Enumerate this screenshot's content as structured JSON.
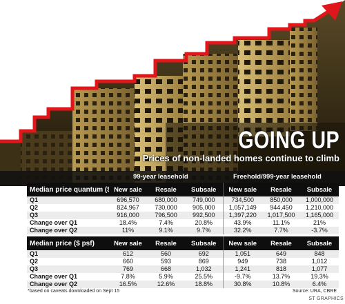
{
  "headline": "GOING UP",
  "subheadline": "Prices of non-landed homes continue to climb",
  "groups": {
    "leasehold": "99-year leasehold",
    "freehold": "Freehold/999-year leasehold"
  },
  "columns": [
    "New sale",
    "Resale",
    "Subsale",
    "New sale",
    "Resale",
    "Subsale"
  ],
  "quantum": {
    "title": "Median price quantum ($)",
    "rows": [
      {
        "label": "Q1",
        "cells": [
          "696,570",
          "680,000",
          "749,000",
          "734,500",
          "850,000",
          "1,000,000"
        ]
      },
      {
        "label": "Q2",
        "cells": [
          "824,967",
          "730,000",
          "905,000",
          "1,057,149",
          "944,450",
          "1,210,000"
        ]
      },
      {
        "label": "Q3",
        "cells": [
          "916,000",
          "796,500",
          "992,500",
          "1,397,220",
          "1,017,500",
          "1,165,000"
        ]
      },
      {
        "label": "Change over Q1",
        "cells": [
          "18.4%",
          "7.4%",
          "20.8%",
          "43.9%",
          "11.1%",
          "21%"
        ]
      },
      {
        "label": "Change over Q2",
        "cells": [
          "11%",
          "9.1%",
          "9.7%",
          "32.2%",
          "7.7%",
          "-3.7%"
        ]
      }
    ]
  },
  "psf": {
    "title": "Median price ($ psf)",
    "rows": [
      {
        "label": "Q1",
        "cells": [
          "612",
          "560",
          "692",
          "1,051",
          "649",
          "848"
        ]
      },
      {
        "label": "Q2",
        "cells": [
          "660",
          "593",
          "869",
          "949",
          "738",
          "1,012"
        ]
      },
      {
        "label": "Q3",
        "cells": [
          "769",
          "668",
          "1,032",
          "1,241",
          "818",
          "1,077"
        ]
      },
      {
        "label": "Change over Q1",
        "cells": [
          "7.8%",
          "5.9%",
          "25.5%",
          "-9.7%",
          "13.7%",
          "19.3%"
        ]
      },
      {
        "label": "Change over Q2",
        "cells": [
          "16.5%",
          "12.6%",
          "18.8%",
          "30.8%",
          "10.8%",
          "6.4%"
        ]
      }
    ]
  },
  "footnote": "*based on caveats downloaded on Sept 15",
  "source": "Source: URA, CBRE",
  "credit": "ST GRAPHICS",
  "colors": {
    "arrow": "#e0161b",
    "table_header": "#0e0e0e",
    "row_shade": "#ececec"
  }
}
